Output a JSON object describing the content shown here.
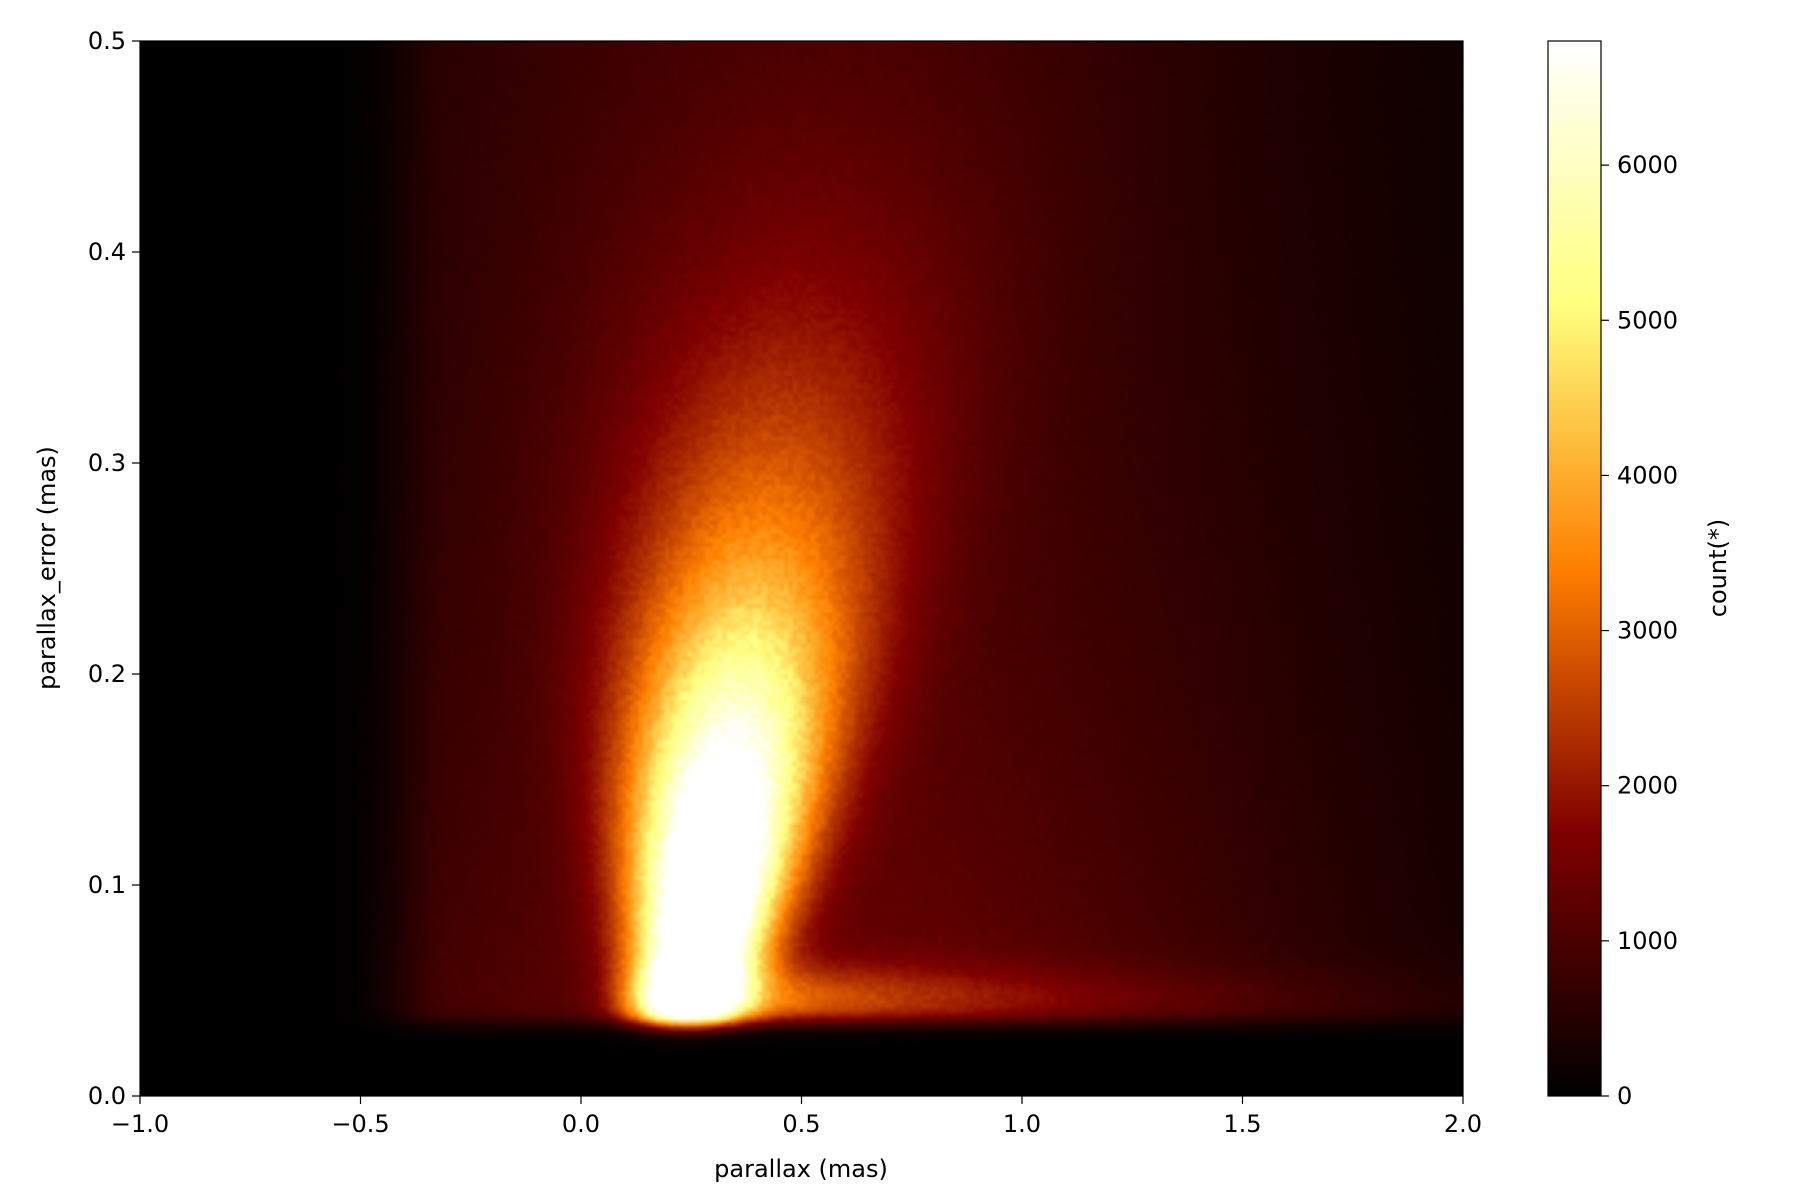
{
  "chart_data": {
    "type": "heatmap",
    "title": "",
    "xlabel": "parallax (mas)",
    "ylabel": "parallax_error (mas)",
    "xlim": [
      -1.0,
      2.0
    ],
    "ylim": [
      0.0,
      0.5
    ],
    "x_ticks": [
      {
        "value": -1.0,
        "label": "−1.0"
      },
      {
        "value": -0.5,
        "label": "−0.5"
      },
      {
        "value": 0.0,
        "label": "0.0"
      },
      {
        "value": 0.5,
        "label": "0.5"
      },
      {
        "value": 1.0,
        "label": "1.0"
      },
      {
        "value": 1.5,
        "label": "1.5"
      },
      {
        "value": 2.0,
        "label": "2.0"
      }
    ],
    "y_ticks": [
      {
        "value": 0.0,
        "label": "0.0"
      },
      {
        "value": 0.1,
        "label": "0.1"
      },
      {
        "value": 0.2,
        "label": "0.2"
      },
      {
        "value": 0.3,
        "label": "0.3"
      },
      {
        "value": 0.4,
        "label": "0.4"
      },
      {
        "value": 0.5,
        "label": "0.5"
      }
    ],
    "colorbar": {
      "label": "count(*)",
      "colormap": "afmhot",
      "range": [
        0,
        6800
      ],
      "ticks": [
        {
          "value": 0,
          "label": "0"
        },
        {
          "value": 1000,
          "label": "1000"
        },
        {
          "value": 2000,
          "label": "2000"
        },
        {
          "value": 3000,
          "label": "3000"
        },
        {
          "value": 4000,
          "label": "4000"
        },
        {
          "value": 5000,
          "label": "5000"
        },
        {
          "value": 6000,
          "label": "6000"
        }
      ]
    },
    "grid": false,
    "density_features": {
      "peak": {
        "parallax": 0.35,
        "parallax_error": 0.07,
        "count": 6800
      },
      "lower_cutoff_parallax_error": 0.035,
      "plume_extends_to_parallax_error": 0.35,
      "tail_along_parallax": {
        "from": 0.5,
        "to": 2.0,
        "parallax_error": 0.04
      }
    }
  }
}
